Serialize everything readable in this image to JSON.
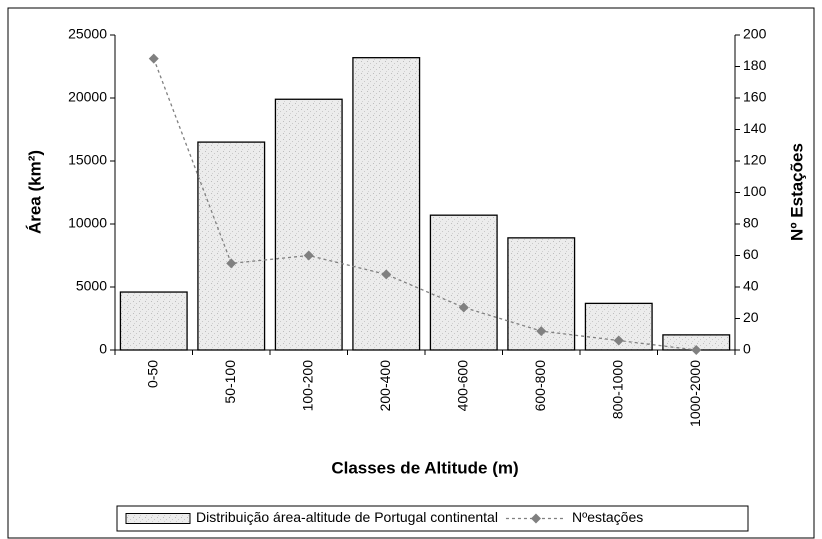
{
  "chart_data": {
    "type": "bar-line",
    "xlabel": "Classes de Altitude (m)",
    "ylabel": "Área (km²)",
    "y2label": "Nº Estações",
    "categories": [
      "0-50",
      "50-100",
      "100-200",
      "200-400",
      "400-600",
      "600-800",
      "800-1000",
      "1000-2000"
    ],
    "series": [
      {
        "name": "Distribuição área-altitude de Portugal continental",
        "type": "bar",
        "color": "#e6e6e6",
        "values": [
          4600,
          16500,
          19900,
          23200,
          10700,
          8900,
          3700,
          1200
        ]
      },
      {
        "name": "Nºestações",
        "type": "line",
        "axis": "y2",
        "color": "#808080",
        "values": [
          185,
          55,
          60,
          48,
          27,
          12,
          6,
          0
        ]
      }
    ],
    "ylim": [
      0,
      25000
    ],
    "yticks": [
      0,
      5000,
      10000,
      15000,
      20000,
      25000
    ],
    "y2lim": [
      0,
      200
    ],
    "y2ticks": [
      0,
      20,
      40,
      60,
      80,
      100,
      120,
      140,
      160,
      180,
      200
    ],
    "legend": "bottom"
  }
}
